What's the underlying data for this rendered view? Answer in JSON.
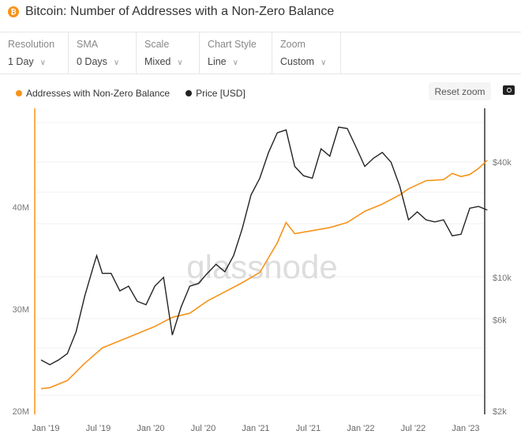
{
  "title": "Bitcoin: Number of Addresses with a Non-Zero Balance",
  "toolbar": [
    {
      "label": "Resolution",
      "value": "1 Day"
    },
    {
      "label": "SMA",
      "value": "0 Days"
    },
    {
      "label": "Scale",
      "value": "Mixed"
    },
    {
      "label": "Chart Style",
      "value": "Line"
    },
    {
      "label": "Zoom",
      "value": "Custom"
    }
  ],
  "reset_zoom": "Reset zoom",
  "watermark": "glassnode",
  "colors": {
    "addresses": "#f7931a",
    "price": "#222222"
  },
  "chart_data": {
    "type": "line",
    "legend_position": "top-left",
    "grid": true,
    "x_ticks": [
      "Jan '19",
      "Jul '19",
      "Jan '20",
      "Jul '20",
      "Jan '21",
      "Jul '21",
      "Jan '22",
      "Jul '22",
      "Jan '23"
    ],
    "y_left": {
      "scale": "linear",
      "ticks": [
        "20M",
        "30M",
        "40M"
      ],
      "range": [
        20000000,
        46500000
      ]
    },
    "y_right": {
      "scale": "log",
      "ticks": [
        "$2k",
        "$6k",
        "$10k",
        "$40k"
      ],
      "range": [
        2000,
        80000
      ]
    },
    "series": [
      {
        "name": "Addresses with Non-Zero Balance",
        "axis": "left",
        "dates": [
          "2018-12",
          "2019-01",
          "2019-03",
          "2019-05",
          "2019-07",
          "2019-09",
          "2019-11",
          "2020-01",
          "2020-03",
          "2020-05",
          "2020-07",
          "2020-09",
          "2020-11",
          "2021-01",
          "2021-03",
          "2021-04",
          "2021-05",
          "2021-07",
          "2021-09",
          "2021-11",
          "2022-01",
          "2022-03",
          "2022-05",
          "2022-06",
          "2022-08",
          "2022-10",
          "2022-11",
          "2022-12",
          "2023-01",
          "2023-02",
          "2023-03"
        ],
        "values": [
          22200000,
          22300000,
          23000000,
          24700000,
          26200000,
          26900000,
          27600000,
          28300000,
          29200000,
          29600000,
          30800000,
          31700000,
          32600000,
          33600000,
          36500000,
          38500000,
          37400000,
          37700000,
          38000000,
          38500000,
          39600000,
          40300000,
          41200000,
          41800000,
          42600000,
          42700000,
          43300000,
          43000000,
          43200000,
          43800000,
          44600000
        ]
      },
      {
        "name": "Price [USD]",
        "axis": "right",
        "dates": [
          "2018-12",
          "2019-01",
          "2019-02",
          "2019-03",
          "2019-04",
          "2019-05",
          "2019-06",
          "2019-06-26",
          "2019-07",
          "2019-08",
          "2019-09",
          "2019-10",
          "2019-11",
          "2019-12",
          "2020-01",
          "2020-02",
          "2020-03",
          "2020-04",
          "2020-05",
          "2020-06",
          "2020-07",
          "2020-08",
          "2020-09",
          "2020-10",
          "2020-11",
          "2020-12",
          "2021-01",
          "2021-02",
          "2021-03",
          "2021-04",
          "2021-05",
          "2021-06",
          "2021-07",
          "2021-08",
          "2021-09",
          "2021-10",
          "2021-11",
          "2021-12",
          "2022-01",
          "2022-02",
          "2022-03",
          "2022-04",
          "2022-05",
          "2022-06",
          "2022-07",
          "2022-08",
          "2022-09",
          "2022-10",
          "2022-11",
          "2022-12",
          "2023-01",
          "2023-02",
          "2023-03"
        ],
        "values": [
          3700,
          3500,
          3700,
          4000,
          5200,
          8000,
          11500,
          13000,
          10500,
          10500,
          8500,
          9000,
          7500,
          7200,
          9000,
          10000,
          5000,
          7000,
          9000,
          9300,
          10500,
          11700,
          10700,
          13000,
          18000,
          27000,
          33000,
          45000,
          57000,
          59000,
          38000,
          34000,
          33000,
          47000,
          43000,
          61000,
          60000,
          48000,
          38000,
          42000,
          45000,
          40000,
          30000,
          20000,
          22000,
          20000,
          19500,
          20000,
          16500,
          16800,
          23000,
          23500,
          22500
        ]
      }
    ]
  }
}
